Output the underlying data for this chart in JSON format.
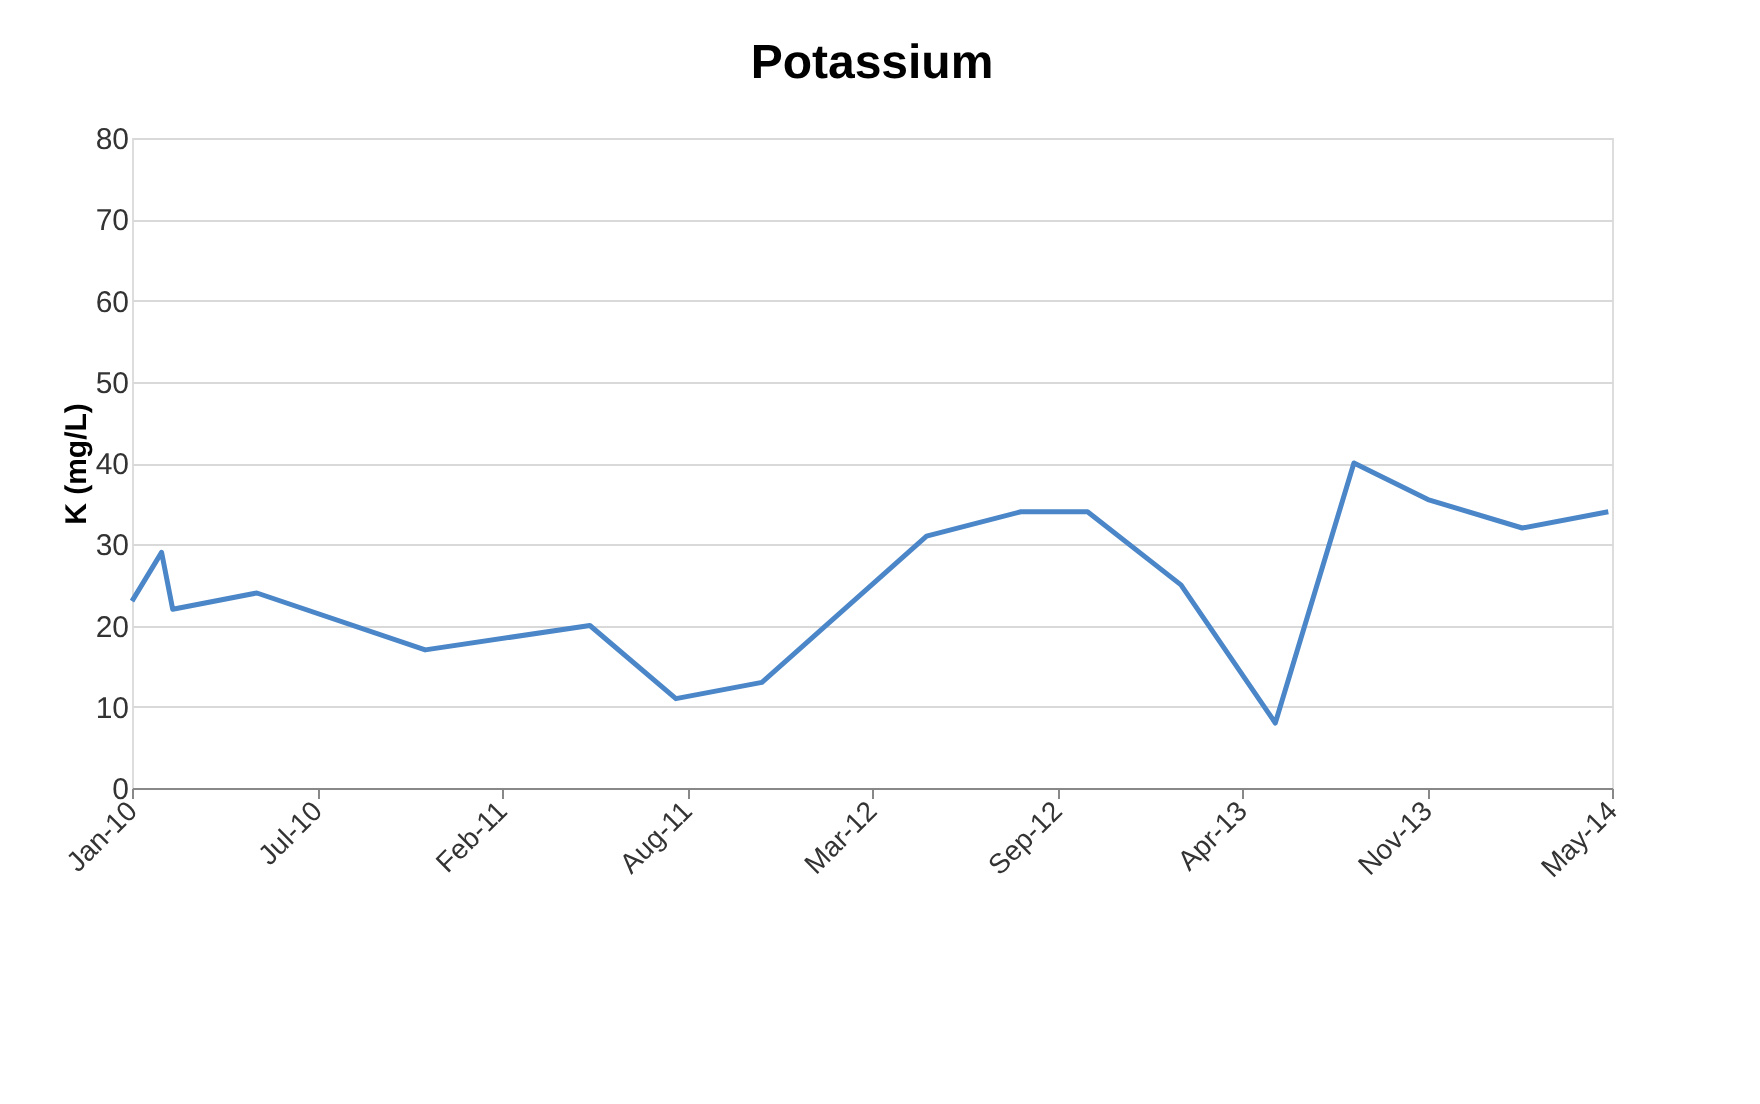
{
  "chart_data": {
    "type": "line",
    "title": "Potassium",
    "ylabel": "K (mg/L)",
    "x": [
      "2010-01-01",
      "2010-02-02",
      "2010-02-14",
      "2010-05-16",
      "2010-11-14",
      "2011-05-11",
      "2011-08-12",
      "2011-11-13",
      "2012-05-09",
      "2012-08-19",
      "2012-10-30",
      "2013-02-08",
      "2013-05-21",
      "2013-08-14",
      "2013-11-02",
      "2014-02-12",
      "2014-05-16"
    ],
    "series": [
      {
        "color": "#4a86c8",
        "values": [
          23,
          29,
          22,
          24,
          17,
          20,
          11,
          13,
          31,
          34,
          34,
          25,
          8,
          40,
          35.5,
          32,
          34
        ]
      }
    ],
    "xlim": [
      "2010-01-01",
      "2014-05-20"
    ],
    "xticks": [
      {
        "value": "2010-01-01",
        "label": "Jan-10"
      },
      {
        "value": "2010-07-20",
        "label": "Jul-10"
      },
      {
        "value": "2011-02-05",
        "label": "Feb-11"
      },
      {
        "value": "2011-08-24",
        "label": "Aug-11"
      },
      {
        "value": "2012-03-11",
        "label": "Mar-12"
      },
      {
        "value": "2012-09-27",
        "label": "Sep-12"
      },
      {
        "value": "2013-04-15",
        "label": "Apr-13"
      },
      {
        "value": "2013-11-01",
        "label": "Nov-13"
      },
      {
        "value": "2014-05-20",
        "label": "May-14"
      }
    ],
    "ylim": [
      0,
      80
    ],
    "yticks": [
      0,
      10,
      20,
      30,
      40,
      50,
      60,
      70,
      80
    ],
    "grid": "y",
    "marker": "none",
    "line_style": "solid"
  }
}
